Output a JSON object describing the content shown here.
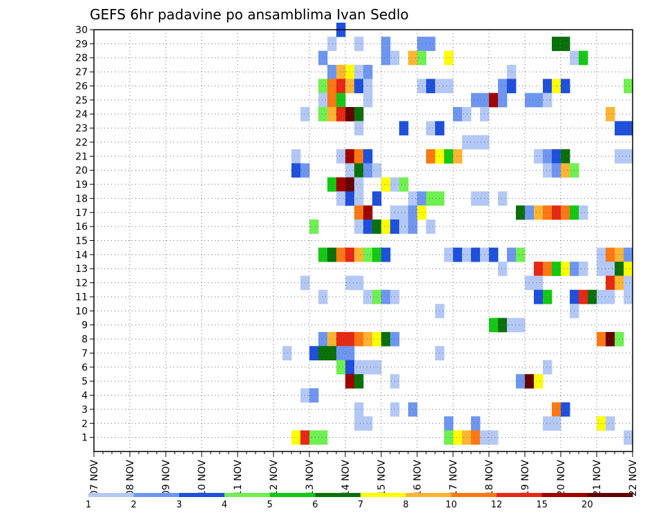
{
  "chart_data": {
    "type": "heatmap",
    "title": "GEFS 6hr padavine po ansamblima Ivan Sedlo",
    "xlabel": "",
    "ylabel": "",
    "x_ticks": [
      "07 NOV",
      "08 NOV",
      "09 NOV",
      "10 NOV",
      "11 NOV",
      "12 NOV",
      "13 NOV",
      "14 NOV",
      "15 NOV",
      "16 NOV",
      "17 NOV",
      "18 NOV",
      "19 NOV",
      "20 NOV",
      "21 NOV",
      "22 NOV"
    ],
    "xlim": [
      0,
      60
    ],
    "x_units": "6-hour steps from 07 NOV 00Z",
    "y_ticks": [
      1,
      2,
      3,
      4,
      5,
      6,
      7,
      8,
      9,
      10,
      11,
      12,
      13,
      14,
      15,
      16,
      17,
      18,
      19,
      20,
      21,
      22,
      23,
      24,
      25,
      26,
      27,
      28,
      29,
      30
    ],
    "ylim": [
      0,
      30
    ],
    "grid": true,
    "colorbar": {
      "labels": [
        "1",
        "2",
        "3",
        "4",
        "5",
        "6",
        "7",
        "8",
        "10",
        "12",
        "15",
        "20"
      ],
      "colors": [
        "#b4c8f5",
        "#6e96f0",
        "#1e50dc",
        "#6ef050",
        "#14c814",
        "#0a700a",
        "#ffff00",
        "#ffb432",
        "#ff7814",
        "#e62814",
        "#a00000",
        "#640000"
      ]
    },
    "cells": [
      [
        30,
        27,
        3
      ],
      [
        29,
        26,
        1
      ],
      [
        29,
        29,
        1
      ],
      [
        29,
        32,
        2
      ],
      [
        29,
        36,
        2
      ],
      [
        29,
        37,
        2
      ],
      [
        29,
        51,
        6
      ],
      [
        29,
        52,
        6
      ],
      [
        28,
        25,
        2
      ],
      [
        28,
        32,
        2
      ],
      [
        28,
        33,
        1
      ],
      [
        28,
        35,
        8
      ],
      [
        28,
        36,
        4
      ],
      [
        28,
        39,
        7
      ],
      [
        28,
        53,
        1
      ],
      [
        28,
        54,
        5
      ],
      [
        27,
        26,
        2
      ],
      [
        27,
        27,
        8
      ],
      [
        27,
        28,
        7
      ],
      [
        27,
        29,
        1
      ],
      [
        27,
        30,
        2
      ],
      [
        27,
        46,
        1
      ],
      [
        26,
        25,
        4
      ],
      [
        26,
        26,
        9
      ],
      [
        26,
        27,
        10
      ],
      [
        26,
        28,
        8
      ],
      [
        26,
        29,
        3
      ],
      [
        26,
        30,
        1
      ],
      [
        26,
        36,
        1
      ],
      [
        26,
        37,
        3
      ],
      [
        26,
        38,
        1
      ],
      [
        26,
        39,
        1
      ],
      [
        26,
        45,
        2
      ],
      [
        26,
        46,
        3
      ],
      [
        26,
        50,
        3
      ],
      [
        26,
        51,
        7
      ],
      [
        26,
        52,
        3
      ],
      [
        26,
        59,
        4
      ],
      [
        25,
        25,
        1
      ],
      [
        25,
        26,
        9
      ],
      [
        25,
        27,
        5
      ],
      [
        25,
        30,
        1
      ],
      [
        25,
        42,
        2
      ],
      [
        25,
        43,
        2
      ],
      [
        25,
        44,
        11
      ],
      [
        25,
        45,
        2
      ],
      [
        25,
        48,
        2
      ],
      [
        25,
        49,
        2
      ],
      [
        25,
        50,
        1
      ],
      [
        24,
        23,
        1
      ],
      [
        24,
        25,
        4
      ],
      [
        24,
        26,
        8
      ],
      [
        24,
        27,
        10
      ],
      [
        24,
        28,
        12
      ],
      [
        24,
        29,
        6
      ],
      [
        24,
        40,
        2
      ],
      [
        24,
        41,
        1
      ],
      [
        24,
        43,
        1
      ],
      [
        24,
        57,
        8
      ],
      [
        23,
        29,
        1
      ],
      [
        23,
        34,
        3
      ],
      [
        23,
        37,
        1
      ],
      [
        23,
        38,
        3
      ],
      [
        23,
        58,
        3
      ],
      [
        23,
        59,
        3
      ],
      [
        22,
        41,
        1
      ],
      [
        22,
        42,
        1
      ],
      [
        22,
        43,
        1
      ],
      [
        21,
        22,
        1
      ],
      [
        21,
        27,
        1
      ],
      [
        21,
        28,
        11
      ],
      [
        21,
        29,
        9
      ],
      [
        21,
        30,
        3
      ],
      [
        21,
        37,
        9
      ],
      [
        21,
        38,
        7
      ],
      [
        21,
        39,
        5
      ],
      [
        21,
        40,
        8
      ],
      [
        21,
        49,
        1
      ],
      [
        21,
        50,
        2
      ],
      [
        21,
        51,
        3
      ],
      [
        21,
        52,
        6
      ],
      [
        21,
        58,
        1
      ],
      [
        21,
        59,
        1
      ],
      [
        20,
        22,
        3
      ],
      [
        20,
        23,
        2
      ],
      [
        20,
        28,
        1
      ],
      [
        20,
        29,
        6
      ],
      [
        20,
        30,
        2
      ],
      [
        20,
        31,
        1
      ],
      [
        20,
        50,
        1
      ],
      [
        20,
        51,
        2
      ],
      [
        20,
        52,
        8
      ],
      [
        20,
        53,
        4
      ],
      [
        19,
        26,
        5
      ],
      [
        19,
        27,
        11
      ],
      [
        19,
        28,
        12
      ],
      [
        19,
        29,
        1
      ],
      [
        19,
        32,
        7
      ],
      [
        19,
        33,
        1
      ],
      [
        19,
        34,
        4
      ],
      [
        18,
        27,
        1
      ],
      [
        18,
        28,
        3
      ],
      [
        18,
        29,
        1
      ],
      [
        18,
        31,
        3
      ],
      [
        18,
        35,
        1
      ],
      [
        18,
        36,
        2
      ],
      [
        18,
        37,
        4
      ],
      [
        18,
        38,
        4
      ],
      [
        18,
        42,
        1
      ],
      [
        18,
        43,
        1
      ],
      [
        18,
        45,
        1
      ],
      [
        17,
        29,
        9
      ],
      [
        17,
        30,
        11
      ],
      [
        17,
        33,
        1
      ],
      [
        17,
        34,
        1
      ],
      [
        17,
        35,
        2
      ],
      [
        17,
        36,
        7
      ],
      [
        17,
        47,
        6
      ],
      [
        17,
        48,
        2
      ],
      [
        17,
        49,
        8
      ],
      [
        17,
        50,
        9
      ],
      [
        17,
        51,
        10
      ],
      [
        17,
        52,
        9
      ],
      [
        17,
        53,
        5
      ],
      [
        17,
        54,
        1
      ],
      [
        16,
        24,
        4
      ],
      [
        16,
        29,
        1
      ],
      [
        16,
        30,
        3
      ],
      [
        16,
        31,
        6
      ],
      [
        16,
        32,
        7
      ],
      [
        16,
        33,
        3
      ],
      [
        16,
        34,
        1
      ],
      [
        16,
        35,
        2
      ],
      [
        16,
        37,
        1
      ],
      [
        14,
        25,
        5
      ],
      [
        14,
        26,
        6
      ],
      [
        14,
        27,
        9
      ],
      [
        14,
        28,
        10
      ],
      [
        14,
        29,
        8
      ],
      [
        14,
        30,
        4
      ],
      [
        14,
        31,
        5
      ],
      [
        14,
        32,
        3
      ],
      [
        14,
        39,
        1
      ],
      [
        14,
        40,
        3
      ],
      [
        14,
        41,
        1
      ],
      [
        14,
        42,
        3
      ],
      [
        14,
        43,
        1
      ],
      [
        14,
        44,
        3
      ],
      [
        14,
        46,
        2
      ],
      [
        14,
        47,
        4
      ],
      [
        14,
        56,
        1
      ],
      [
        14,
        57,
        9
      ],
      [
        14,
        58,
        8
      ],
      [
        14,
        59,
        2
      ],
      [
        13,
        45,
        1
      ],
      [
        13,
        49,
        10
      ],
      [
        13,
        50,
        9
      ],
      [
        13,
        51,
        5
      ],
      [
        13,
        52,
        7
      ],
      [
        13,
        53,
        2
      ],
      [
        13,
        54,
        1
      ],
      [
        13,
        56,
        1
      ],
      [
        13,
        57,
        1
      ],
      [
        13,
        58,
        6
      ],
      [
        13,
        59,
        7
      ],
      [
        12,
        23,
        1
      ],
      [
        12,
        28,
        1
      ],
      [
        12,
        29,
        1
      ],
      [
        12,
        48,
        1
      ],
      [
        12,
        49,
        1
      ],
      [
        12,
        57,
        10
      ],
      [
        12,
        58,
        8
      ],
      [
        12,
        59,
        1
      ],
      [
        11,
        25,
        1
      ],
      [
        11,
        30,
        1
      ],
      [
        11,
        31,
        4
      ],
      [
        11,
        32,
        2
      ],
      [
        11,
        33,
        1
      ],
      [
        11,
        49,
        3
      ],
      [
        11,
        50,
        5
      ],
      [
        11,
        53,
        3
      ],
      [
        11,
        54,
        10
      ],
      [
        11,
        55,
        6
      ],
      [
        11,
        56,
        1
      ],
      [
        11,
        57,
        1
      ],
      [
        11,
        59,
        1
      ],
      [
        10,
        38,
        1
      ],
      [
        10,
        53,
        1
      ],
      [
        9,
        44,
        5
      ],
      [
        9,
        45,
        6
      ],
      [
        9,
        46,
        1
      ],
      [
        9,
        47,
        1
      ],
      [
        8,
        25,
        2
      ],
      [
        8,
        26,
        8
      ],
      [
        8,
        27,
        10
      ],
      [
        8,
        28,
        10
      ],
      [
        8,
        29,
        9
      ],
      [
        8,
        30,
        8
      ],
      [
        8,
        31,
        7
      ],
      [
        8,
        32,
        6
      ],
      [
        8,
        33,
        2
      ],
      [
        8,
        56,
        9
      ],
      [
        8,
        57,
        12
      ],
      [
        8,
        58,
        4
      ],
      [
        7,
        21,
        1
      ],
      [
        7,
        24,
        3
      ],
      [
        7,
        25,
        6
      ],
      [
        7,
        26,
        6
      ],
      [
        7,
        27,
        2
      ],
      [
        7,
        28,
        2
      ],
      [
        7,
        38,
        1
      ],
      [
        6,
        27,
        4
      ],
      [
        6,
        28,
        3
      ],
      [
        6,
        29,
        1
      ],
      [
        6,
        30,
        1
      ],
      [
        6,
        31,
        1
      ],
      [
        6,
        50,
        1
      ],
      [
        5,
        28,
        11
      ],
      [
        5,
        29,
        6
      ],
      [
        5,
        33,
        1
      ],
      [
        5,
        47,
        2
      ],
      [
        5,
        48,
        12
      ],
      [
        5,
        49,
        7
      ],
      [
        4,
        23,
        1
      ],
      [
        4,
        24,
        2
      ],
      [
        3,
        29,
        1
      ],
      [
        3,
        33,
        1
      ],
      [
        3,
        35,
        2
      ],
      [
        3,
        51,
        9
      ],
      [
        3,
        52,
        3
      ],
      [
        2,
        29,
        1
      ],
      [
        2,
        30,
        1
      ],
      [
        2,
        39,
        2
      ],
      [
        2,
        42,
        2
      ],
      [
        2,
        50,
        1
      ],
      [
        2,
        51,
        1
      ],
      [
        2,
        56,
        7
      ],
      [
        2,
        57,
        1
      ],
      [
        1,
        22,
        7
      ],
      [
        1,
        23,
        10
      ],
      [
        1,
        24,
        4
      ],
      [
        1,
        25,
        4
      ],
      [
        1,
        39,
        4
      ],
      [
        1,
        40,
        7
      ],
      [
        1,
        41,
        8
      ],
      [
        1,
        42,
        9
      ],
      [
        1,
        43,
        1
      ],
      [
        1,
        44,
        1
      ],
      [
        1,
        59,
        1
      ]
    ]
  }
}
